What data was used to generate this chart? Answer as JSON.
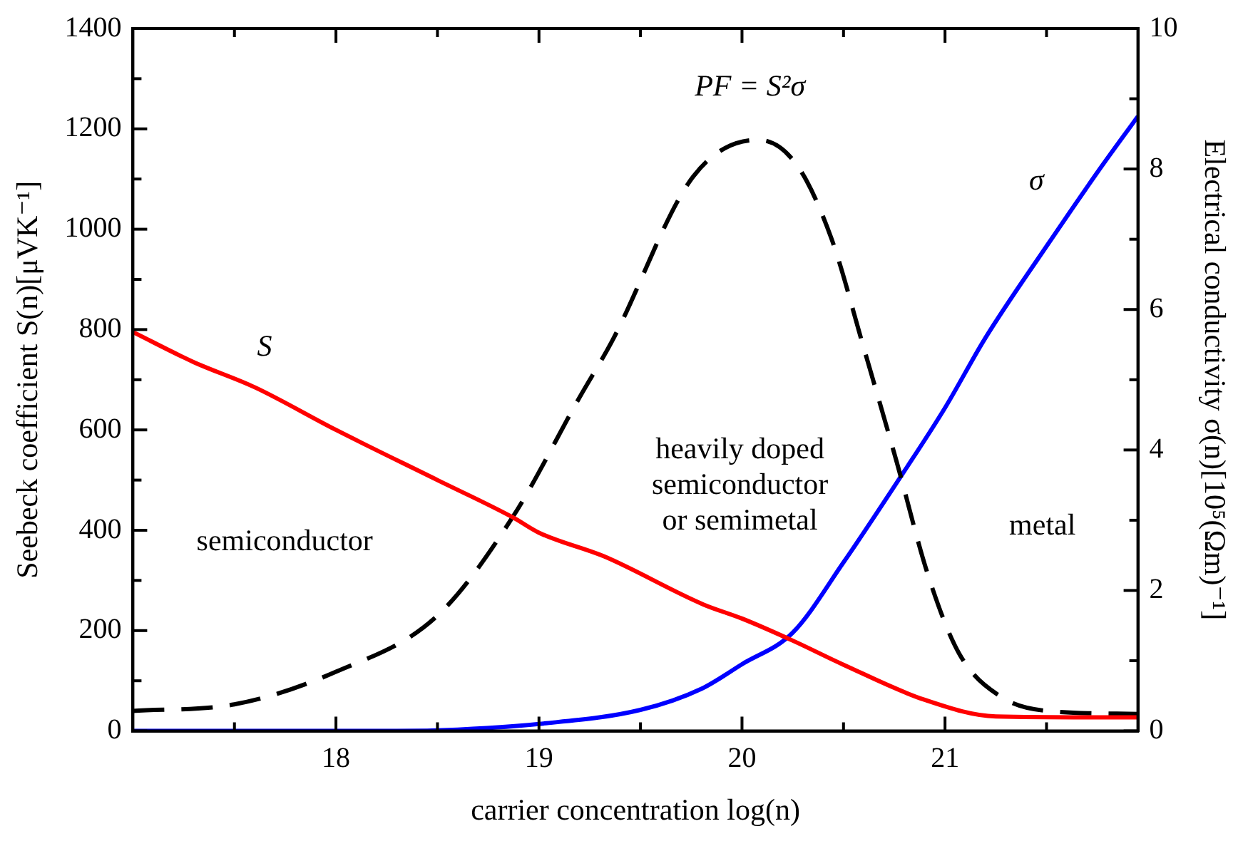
{
  "chart_data": {
    "type": "line",
    "xlabel": "carrier concentration log(n)",
    "ylabel": "Seebeck coefficient S(n)[μVK⁻¹]",
    "y2label": "Electrical conductivity σ(n)[10⁵(Ωm)⁻¹]",
    "xlim": [
      17,
      21.95
    ],
    "xticks": [
      {
        "value": 17.5,
        "label": null
      },
      18,
      {
        "value": 18.5,
        "label": null
      },
      19,
      {
        "value": 19.5,
        "label": null
      },
      20,
      {
        "value": 20.5,
        "label": null
      },
      21,
      {
        "value": 21.5,
        "label": null
      }
    ],
    "ylim": [
      0,
      1400
    ],
    "yticks": [
      0,
      {
        "value": 100,
        "label": null
      },
      200,
      {
        "value": 300,
        "label": null
      },
      400,
      {
        "value": 500,
        "label": null
      },
      600,
      {
        "value": 700,
        "label": null
      },
      800,
      {
        "value": 900,
        "label": null
      },
      1000,
      {
        "value": 1100,
        "label": null
      },
      1200,
      {
        "value": 1300,
        "label": null
      },
      1400
    ],
    "y2lim": [
      0,
      10
    ],
    "y2ticks": [
      0,
      {
        "value": 1,
        "label": null
      },
      2,
      {
        "value": 3,
        "label": null
      },
      4,
      {
        "value": 5,
        "label": null
      },
      6,
      {
        "value": 7,
        "label": null
      },
      8,
      {
        "value": 9,
        "label": null
      },
      10
    ],
    "grid": false,
    "legend": false,
    "marker": "none",
    "series": [
      {
        "name": "S",
        "color": "#ff0000",
        "line_style": "solid",
        "x": [
          17,
          17.3,
          17.6,
          18,
          18.5,
          18.87,
          19,
          19.32,
          19.81,
          20,
          20.25,
          20.5,
          20.9,
          21.25,
          21.95
        ],
        "values": [
          795,
          735,
          685,
          600,
          500,
          426,
          395,
          348,
          252,
          224,
          180,
          132,
          62,
          29,
          27
        ]
      },
      {
        "color": "#000000",
        "line_style": "dashed",
        "x": [
          17,
          17.5,
          18,
          18.5,
          18.87,
          19.2,
          19.36,
          19.76,
          20.08,
          20.27,
          20.44,
          20.6,
          20.76,
          20.92,
          21.07,
          21.28,
          21.53,
          21.95
        ],
        "values": [
          40,
          53,
          118,
          230,
          426,
          665,
          777,
          1105,
          1178,
          1128,
          982,
          763,
          539,
          306,
          154,
          67,
          39,
          34
        ]
      },
      {
        "name": "σ",
        "color": "#0000ff",
        "line_style": "solid",
        "axis": "y2",
        "x": [
          17,
          18.3,
          18.6,
          19,
          19.5,
          19.8,
          20,
          20.25,
          20.5,
          20.8,
          21,
          21.2,
          21.5,
          21.75,
          21.95
        ],
        "values": [
          0,
          0,
          0.02,
          0.1,
          0.3,
          0.6,
          0.95,
          1.4,
          2.4,
          3.7,
          4.6,
          5.6,
          6.9,
          7.95,
          8.75
        ]
      }
    ],
    "annotations": [
      "PF = S²σ",
      "semiconductor",
      "heavily doped\nsemiconductor\nor semimetal",
      "metal"
    ]
  }
}
